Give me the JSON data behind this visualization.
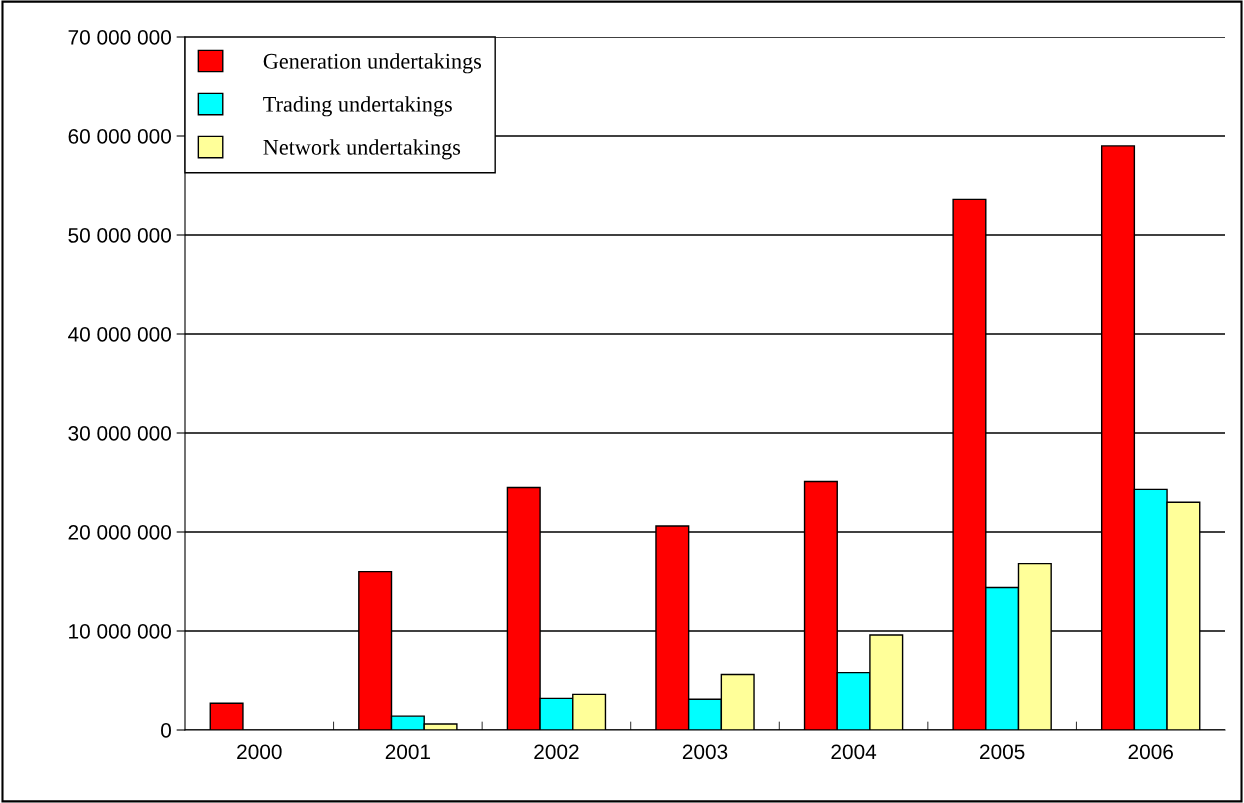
{
  "chart_data": {
    "type": "bar",
    "categories": [
      "2000",
      "2001",
      "2002",
      "2003",
      "2004",
      "2005",
      "2006"
    ],
    "series": [
      {
        "name": "Generation undertakings",
        "color": "#ff0000",
        "values": [
          2700000,
          16000000,
          24500000,
          20600000,
          25100000,
          53600000,
          59000000
        ]
      },
      {
        "name": "Trading undertakings",
        "color": "#00ffff",
        "values": [
          null,
          1400000,
          3200000,
          3100000,
          5800000,
          14400000,
          24300000
        ]
      },
      {
        "name": "Network undertakings",
        "color": "#ffff99",
        "values": [
          null,
          600000,
          3600000,
          5600000,
          9600000,
          16800000,
          23000000
        ]
      }
    ],
    "ylim": [
      0,
      70000000
    ],
    "yticks": [
      {
        "value": 0,
        "label": "0"
      },
      {
        "value": 10000000,
        "label": "10 000 000"
      },
      {
        "value": 20000000,
        "label": "20 000 000"
      },
      {
        "value": 30000000,
        "label": "30 000 000"
      },
      {
        "value": 40000000,
        "label": "40 000 000"
      },
      {
        "value": 50000000,
        "label": "50 000 000"
      },
      {
        "value": 60000000,
        "label": "60 000 000"
      },
      {
        "value": 70000000,
        "label": "70 000 000"
      }
    ],
    "grid": "y",
    "legend": "top left"
  }
}
